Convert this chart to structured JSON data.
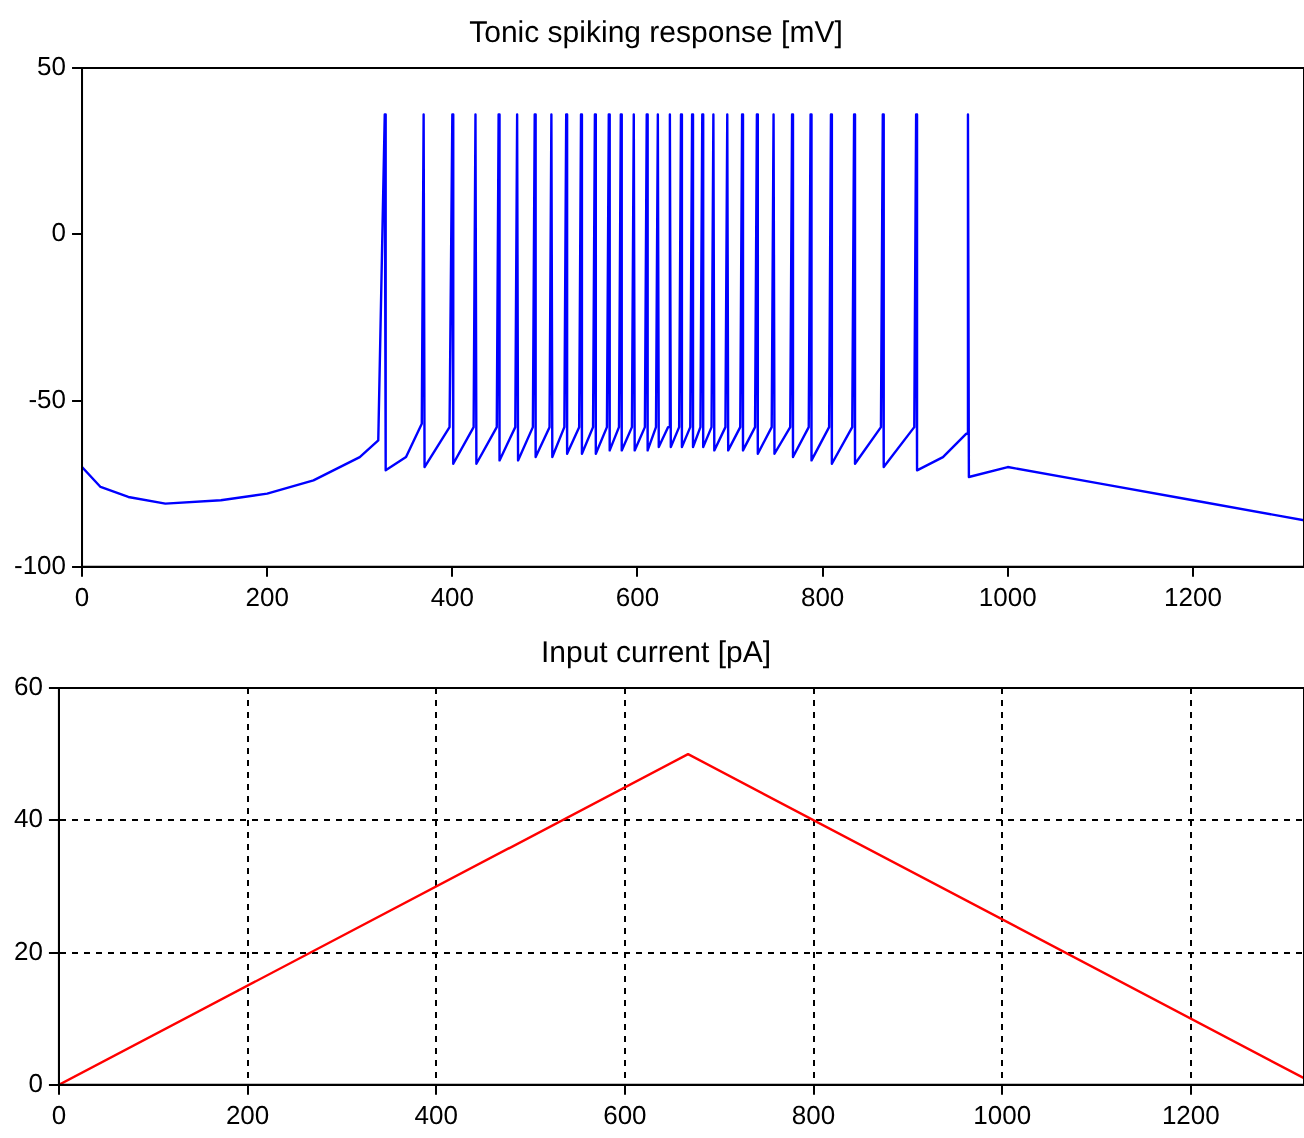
{
  "chart_data": [
    {
      "type": "line",
      "title": "Tonic spiking response [mV]",
      "xlim": [
        0,
        1320
      ],
      "xticks": [
        0,
        200,
        400,
        600,
        800,
        1000,
        1200
      ],
      "ylim": [
        -100,
        50
      ],
      "yticks": [
        -100,
        -50,
        0,
        50
      ],
      "grid": false,
      "legend": false,
      "series": [
        {
          "color": "#0000ff",
          "x": [
            0,
            20,
            50,
            90,
            150,
            200,
            250,
            300,
            320,
            327,
            328,
            350,
            367,
            369,
            370,
            397,
            400,
            401,
            423,
            425,
            426,
            448,
            450,
            451,
            468,
            470,
            471,
            487,
            489,
            490,
            505,
            507,
            508,
            521,
            523,
            524,
            537,
            539,
            540,
            552,
            554,
            555,
            567,
            569,
            570,
            580,
            582,
            583,
            594,
            596,
            597,
            608,
            610,
            611,
            620,
            622,
            623,
            633,
            635,
            636,
            645,
            647,
            648,
            657,
            659,
            660,
            668,
            670,
            671,
            680,
            682,
            683,
            695,
            697,
            698,
            711,
            713,
            714,
            727,
            729,
            730,
            745,
            747,
            748,
            765,
            767,
            768,
            785,
            787,
            788,
            807,
            809,
            810,
            832,
            834,
            835,
            863,
            865,
            866,
            899,
            901,
            902,
            930,
            955,
            957,
            958,
            1000,
            1100,
            1200,
            1320
          ],
          "values": [
            -70,
            -76,
            -79,
            -81,
            -80,
            -78,
            -74,
            -67,
            -62,
            36,
            -71,
            -67,
            -57,
            36,
            -70,
            -58,
            36,
            -69,
            -58,
            36,
            -69,
            -58,
            36,
            -68,
            -58,
            36,
            -68,
            -58,
            36,
            -67,
            -58,
            36,
            -67,
            -58,
            36,
            -66,
            -58,
            36,
            -66,
            -58,
            36,
            -66,
            -58,
            36,
            -65,
            -58,
            36,
            -65,
            -58,
            36,
            -65,
            -58,
            36,
            -65,
            -58,
            36,
            -64,
            -58,
            36,
            -64,
            -58,
            36,
            -64,
            -58,
            36,
            -64,
            -58,
            36,
            -64,
            -58,
            36,
            -65,
            -58,
            36,
            -65,
            -58,
            36,
            -65,
            -58,
            36,
            -66,
            -58,
            36,
            -66,
            -58,
            36,
            -67,
            -58,
            36,
            -68,
            -58,
            36,
            -69,
            -58,
            36,
            -69,
            -58,
            36,
            -70,
            -58,
            36,
            -71,
            -67,
            -60,
            36,
            -73,
            -70,
            -75,
            -80,
            -86
          ]
        }
      ]
    },
    {
      "type": "line",
      "title": "Input current [pA]",
      "xlim": [
        0,
        1320
      ],
      "xticks": [
        0,
        200,
        400,
        600,
        800,
        1000,
        1200
      ],
      "ylim": [
        0,
        60
      ],
      "yticks": [
        0,
        20,
        40,
        60
      ],
      "grid": true,
      "line_style": "solid",
      "legend": false,
      "series": [
        {
          "color": "#ff0000",
          "x": [
            0,
            667,
            1320
          ],
          "values": [
            0,
            50,
            1
          ]
        }
      ]
    }
  ]
}
